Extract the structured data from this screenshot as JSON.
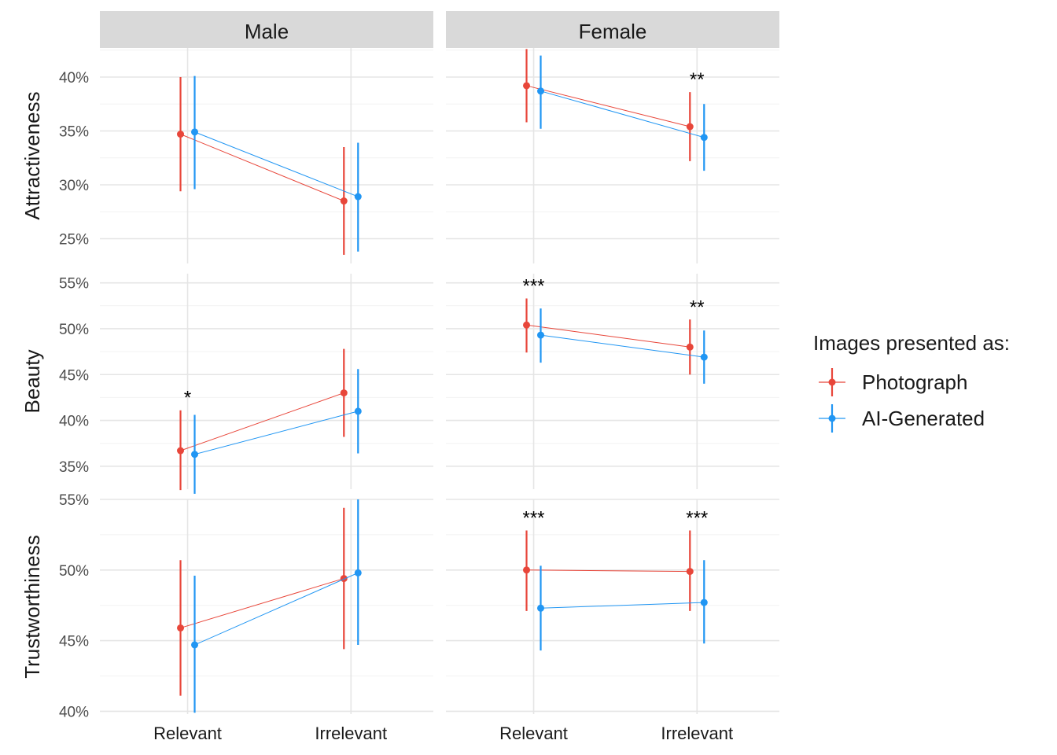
{
  "chart_data": {
    "type": "scatter",
    "facets": {
      "columns": [
        "Male",
        "Female"
      ],
      "rows": [
        "Attractiveness",
        "Beauty",
        "Trustworthiness"
      ]
    },
    "categories": [
      "Relevant",
      "Irrelevant"
    ],
    "legend": {
      "title": "Images presented as:",
      "placement": "right",
      "entries": [
        {
          "name": "Photograph",
          "color": "#E8463A"
        },
        {
          "name": "AI-Generated",
          "color": "#2196F3"
        }
      ]
    },
    "grid": true,
    "y_format": "percent",
    "rows": [
      {
        "name": "Attractiveness",
        "ylim": [
          22.7,
          42.7
        ],
        "yticks": [
          25,
          30,
          35,
          40
        ],
        "tick_labels": [
          "25%",
          "30%",
          "35%",
          "40%"
        ],
        "panels": {
          "Male": {
            "series": [
              {
                "name": "Photograph",
                "values": [
                  34.7,
                  28.5
                ],
                "lower": [
                  29.4,
                  23.5
                ],
                "upper": [
                  40.0,
                  33.5
                ]
              },
              {
                "name": "AI-Generated",
                "values": [
                  34.9,
                  28.9
                ],
                "lower": [
                  29.6,
                  23.8
                ],
                "upper": [
                  40.1,
                  33.9
                ]
              }
            ],
            "annotations": [
              "",
              ""
            ]
          },
          "Female": {
            "series": [
              {
                "name": "Photograph",
                "values": [
                  39.2,
                  35.4
                ],
                "lower": [
                  35.8,
                  32.2
                ],
                "upper": [
                  42.6,
                  38.6
                ]
              },
              {
                "name": "AI-Generated",
                "values": [
                  38.7,
                  34.4
                ],
                "lower": [
                  35.2,
                  31.3
                ],
                "upper": [
                  42.0,
                  37.5
                ]
              }
            ],
            "annotations": [
              "",
              "**"
            ]
          }
        }
      },
      {
        "name": "Beauty",
        "ylim": [
          32.5,
          56.0
        ],
        "yticks": [
          35,
          40,
          45,
          50,
          55
        ],
        "tick_labels": [
          "35%",
          "40%",
          "45%",
          "50%",
          "55%"
        ],
        "panels": {
          "Male": {
            "series": [
              {
                "name": "Photograph",
                "values": [
                  36.7,
                  43.0
                ],
                "lower": [
                  32.4,
                  38.2
                ],
                "upper": [
                  41.1,
                  47.8
                ]
              },
              {
                "name": "AI-Generated",
                "values": [
                  36.3,
                  41.0
                ],
                "lower": [
                  32.0,
                  36.4
                ],
                "upper": [
                  40.6,
                  45.6
                ]
              }
            ],
            "annotations": [
              "*",
              ""
            ]
          },
          "Female": {
            "series": [
              {
                "name": "Photograph",
                "values": [
                  50.4,
                  48.0
                ],
                "lower": [
                  47.4,
                  45.0
                ],
                "upper": [
                  53.3,
                  51.0
                ]
              },
              {
                "name": "AI-Generated",
                "values": [
                  49.3,
                  46.9
                ],
                "lower": [
                  46.3,
                  44.0
                ],
                "upper": [
                  52.2,
                  49.8
                ]
              }
            ],
            "annotations": [
              "***",
              "**"
            ]
          }
        }
      },
      {
        "name": "Trustworthiness",
        "ylim": [
          39.8,
          55.0
        ],
        "yticks": [
          40,
          45,
          50,
          55
        ],
        "tick_labels": [
          "40%",
          "45%",
          "50%",
          "55%"
        ],
        "panels": {
          "Male": {
            "series": [
              {
                "name": "Photograph",
                "values": [
                  45.9,
                  49.4
                ],
                "lower": [
                  41.1,
                  44.4
                ],
                "upper": [
                  50.7,
                  54.4
                ]
              },
              {
                "name": "AI-Generated",
                "values": [
                  44.7,
                  49.8
                ],
                "lower": [
                  39.9,
                  44.7
                ],
                "upper": [
                  49.6,
                  55.0
                ]
              }
            ],
            "annotations": [
              "",
              ""
            ]
          },
          "Female": {
            "series": [
              {
                "name": "Photograph",
                "values": [
                  50.0,
                  49.9
                ],
                "lower": [
                  47.1,
                  47.1
                ],
                "upper": [
                  52.8,
                  52.8
                ]
              },
              {
                "name": "AI-Generated",
                "values": [
                  47.3,
                  47.7
                ],
                "lower": [
                  44.3,
                  44.8
                ],
                "upper": [
                  50.3,
                  50.7
                ]
              }
            ],
            "annotations": [
              "***",
              "***"
            ]
          }
        }
      }
    ]
  }
}
